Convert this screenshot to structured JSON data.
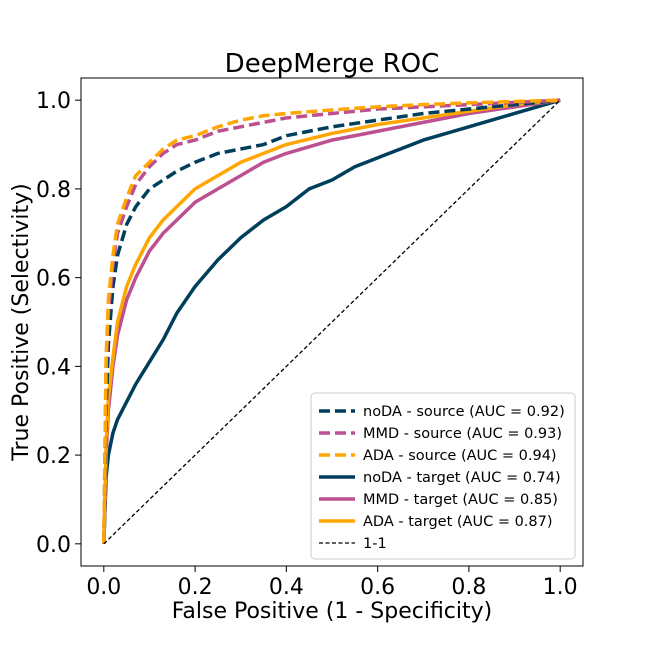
{
  "chart_data": {
    "type": "line",
    "title": "DeepMerge ROC",
    "xlabel": "False Positive (1 - Specificity)",
    "ylabel": "True Positive (Selectivity)",
    "xlim": [
      -0.05,
      1.05
    ],
    "ylim": [
      -0.05,
      1.05
    ],
    "xticks": [
      0.0,
      0.2,
      0.4,
      0.6,
      0.8,
      1.0
    ],
    "yticks": [
      0.0,
      0.2,
      0.4,
      0.6,
      0.8,
      1.0
    ],
    "xtick_labels": [
      "0.0",
      "0.2",
      "0.4",
      "0.6",
      "0.8",
      "1.0"
    ],
    "ytick_labels": [
      "0.0",
      "0.2",
      "0.4",
      "0.6",
      "0.8",
      "1.0"
    ],
    "grid": false,
    "legend_position": "lower-right",
    "series": [
      {
        "name": "noDA - source (AUC = 0.92)",
        "color": "#003f5c",
        "dash": "dashed",
        "x": [
          0.0,
          0.005,
          0.01,
          0.02,
          0.03,
          0.05,
          0.07,
          0.1,
          0.13,
          0.16,
          0.2,
          0.25,
          0.3,
          0.35,
          0.4,
          0.5,
          0.6,
          0.7,
          0.8,
          0.9,
          1.0
        ],
        "y": [
          0.0,
          0.3,
          0.45,
          0.58,
          0.65,
          0.72,
          0.76,
          0.8,
          0.82,
          0.84,
          0.86,
          0.88,
          0.89,
          0.9,
          0.92,
          0.94,
          0.955,
          0.97,
          0.98,
          0.99,
          1.0
        ]
      },
      {
        "name": "MMD - source (AUC = 0.93)",
        "color": "#bc5090",
        "dash": "dashed",
        "x": [
          0.0,
          0.005,
          0.01,
          0.02,
          0.03,
          0.05,
          0.07,
          0.1,
          0.13,
          0.16,
          0.2,
          0.25,
          0.3,
          0.35,
          0.4,
          0.5,
          0.6,
          0.7,
          0.8,
          0.9,
          1.0
        ],
        "y": [
          0.0,
          0.4,
          0.52,
          0.63,
          0.7,
          0.76,
          0.81,
          0.85,
          0.88,
          0.9,
          0.91,
          0.93,
          0.94,
          0.95,
          0.96,
          0.97,
          0.98,
          0.985,
          0.99,
          0.995,
          1.0
        ]
      },
      {
        "name": "ADA - source (AUC = 0.94)",
        "color": "#ffa600",
        "dash": "dashed",
        "x": [
          0.0,
          0.005,
          0.01,
          0.02,
          0.03,
          0.05,
          0.07,
          0.1,
          0.13,
          0.16,
          0.2,
          0.25,
          0.3,
          0.35,
          0.4,
          0.5,
          0.6,
          0.7,
          0.8,
          0.9,
          1.0
        ],
        "y": [
          0.0,
          0.42,
          0.55,
          0.65,
          0.72,
          0.78,
          0.83,
          0.86,
          0.89,
          0.91,
          0.92,
          0.94,
          0.955,
          0.965,
          0.97,
          0.978,
          0.985,
          0.99,
          0.994,
          0.997,
          1.0
        ]
      },
      {
        "name": "noDA - target (AUC = 0.74)",
        "color": "#003f5c",
        "dash": "solid",
        "x": [
          0.0,
          0.005,
          0.01,
          0.02,
          0.03,
          0.05,
          0.07,
          0.1,
          0.13,
          0.16,
          0.2,
          0.25,
          0.3,
          0.35,
          0.4,
          0.45,
          0.5,
          0.55,
          0.6,
          0.65,
          0.7,
          0.8,
          0.9,
          1.0
        ],
        "y": [
          0.0,
          0.15,
          0.2,
          0.25,
          0.28,
          0.32,
          0.36,
          0.41,
          0.46,
          0.52,
          0.58,
          0.64,
          0.69,
          0.73,
          0.76,
          0.8,
          0.82,
          0.85,
          0.87,
          0.89,
          0.91,
          0.94,
          0.97,
          1.0
        ]
      },
      {
        "name": "MMD - target (AUC = 0.85)",
        "color": "#bc5090",
        "dash": "solid",
        "x": [
          0.0,
          0.005,
          0.01,
          0.02,
          0.03,
          0.05,
          0.07,
          0.1,
          0.13,
          0.16,
          0.2,
          0.25,
          0.3,
          0.35,
          0.4,
          0.5,
          0.6,
          0.7,
          0.8,
          0.9,
          1.0
        ],
        "y": [
          0.0,
          0.2,
          0.3,
          0.4,
          0.47,
          0.55,
          0.6,
          0.66,
          0.7,
          0.73,
          0.77,
          0.8,
          0.83,
          0.86,
          0.88,
          0.91,
          0.93,
          0.95,
          0.97,
          0.985,
          1.0
        ]
      },
      {
        "name": "ADA - target (AUC = 0.87)",
        "color": "#ffa600",
        "dash": "solid",
        "x": [
          0.0,
          0.005,
          0.01,
          0.02,
          0.03,
          0.05,
          0.07,
          0.1,
          0.13,
          0.16,
          0.2,
          0.25,
          0.3,
          0.35,
          0.4,
          0.5,
          0.6,
          0.7,
          0.8,
          0.9,
          1.0
        ],
        "y": [
          0.0,
          0.22,
          0.33,
          0.42,
          0.5,
          0.58,
          0.63,
          0.69,
          0.73,
          0.76,
          0.8,
          0.83,
          0.86,
          0.88,
          0.9,
          0.925,
          0.945,
          0.96,
          0.975,
          0.99,
          1.0
        ]
      },
      {
        "name": "1-1",
        "color": "#000000",
        "dash": "thin-dashed",
        "x": [
          0.0,
          1.0
        ],
        "y": [
          0.0,
          1.0
        ]
      }
    ]
  }
}
